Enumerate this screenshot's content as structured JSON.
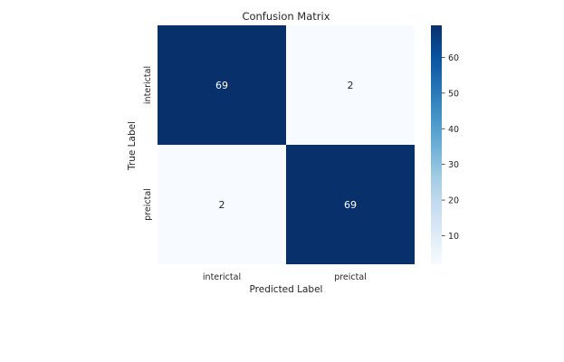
{
  "chart_data": {
    "type": "heatmap",
    "title": "Confusion Matrix",
    "xlabel": "Predicted Label",
    "ylabel": "True Label",
    "x_categories": [
      "interictal",
      "preictal"
    ],
    "y_categories": [
      "interictal",
      "preictal"
    ],
    "values": [
      [
        69,
        2
      ],
      [
        2,
        69
      ]
    ],
    "colormap": "Blues",
    "colorbar": {
      "min": 2,
      "max": 69,
      "ticks": [
        10,
        20,
        30,
        40,
        50,
        60
      ]
    },
    "grid": false
  },
  "colors": {
    "low": "#f7fbff",
    "high": "#08306b",
    "text_dark": "#262626",
    "text_light": "#ffffff"
  }
}
